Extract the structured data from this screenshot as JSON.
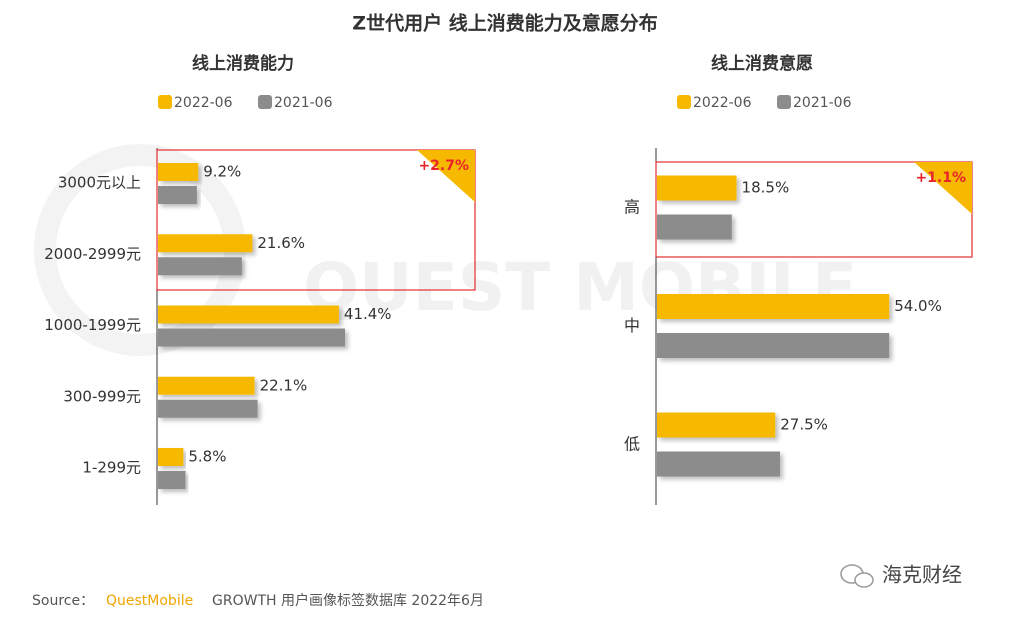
{
  "title": "Z世代用户 线上消费能力及意愿分布",
  "watermark": "QUEST MOBILE",
  "chart_data": [
    {
      "type": "bar",
      "orientation": "horizontal",
      "title": "线上消费能力",
      "categories": [
        "3000元以上",
        "2000-2999元",
        "1000-1999元",
        "300-999元",
        "1-299元"
      ],
      "series": [
        {
          "name": "2022-06",
          "color": "#f7b900",
          "values": [
            9.2,
            21.6,
            41.4,
            22.1,
            5.8
          ],
          "value_labels": [
            "9.2%",
            "21.6%",
            "41.4%",
            "22.1%",
            "5.8%"
          ]
        },
        {
          "name": "2021-06",
          "color": "#8c8c8c",
          "values": [
            8.9,
            19.2,
            42.8,
            22.8,
            6.3
          ]
        }
      ],
      "annotation": "+2.7%"
    },
    {
      "type": "bar",
      "orientation": "horizontal",
      "title": "线上消费意愿",
      "categories": [
        "高",
        "中",
        "低"
      ],
      "series": [
        {
          "name": "2022-06",
          "color": "#f7b900",
          "values": [
            18.5,
            54.0,
            27.5
          ],
          "value_labels": [
            "18.5%",
            "54.0%",
            "27.5%"
          ]
        },
        {
          "name": "2021-06",
          "color": "#8c8c8c",
          "values": [
            17.4,
            54.0,
            28.6
          ]
        }
      ],
      "annotation": "+1.1%"
    }
  ],
  "source": {
    "label": "Source：",
    "brand": "QuestMobile",
    "text": "GROWTH 用户画像标签数据库 2022年6月"
  },
  "signature": "海克财经"
}
